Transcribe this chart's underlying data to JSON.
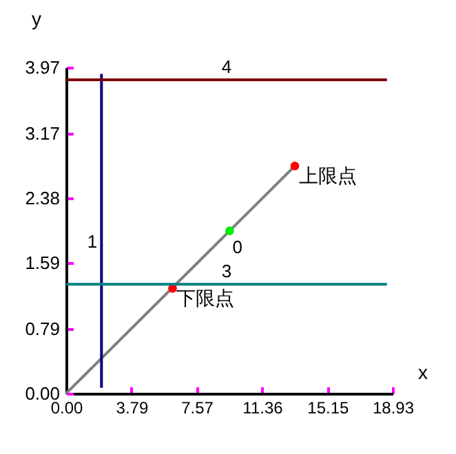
{
  "chart_data": {
    "type": "line",
    "xlabel": "x",
    "ylabel": "y",
    "xlim": [
      0,
      18.93
    ],
    "ylim": [
      0,
      3.97
    ],
    "xticks": [
      {
        "value": 0,
        "label": "0.00"
      },
      3.79,
      7.57,
      11.36,
      15.15,
      18.93
    ],
    "yticks": [
      {
        "value": 0,
        "label": "0.00"
      },
      0.79,
      1.59,
      2.38,
      3.17,
      3.97
    ],
    "series": [
      {
        "color": "#808080",
        "x": [
          0,
          13.26
        ],
        "values": [
          0,
          2.77
        ]
      },
      {
        "type": "scatter",
        "name": "0",
        "color": "#00ee00",
        "x": [
          9.48
        ],
        "values": [
          1.98
        ]
      },
      {
        "type": "scatter",
        "color": "#ff0000",
        "x": [
          6.17,
          13.26
        ],
        "values": [
          1.28,
          2.77
        ]
      },
      {
        "name": "1",
        "color": "#000080",
        "x": [
          2.05,
          2.05
        ],
        "values": [
          0.07,
          3.89
        ]
      },
      {
        "name": "3",
        "color": "#008080",
        "x": [
          0,
          18.6
        ],
        "values": [
          1.33,
          1.33
        ]
      },
      {
        "name": "4",
        "color": "#800000",
        "x": [
          0,
          18.6
        ],
        "values": [
          3.82,
          3.82
        ]
      }
    ],
    "annotations": [
      {
        "text": "上限点",
        "x": 13.26,
        "y": 2.77
      },
      {
        "text": "下限点",
        "x": 6.17,
        "y": 1.28
      }
    ]
  }
}
